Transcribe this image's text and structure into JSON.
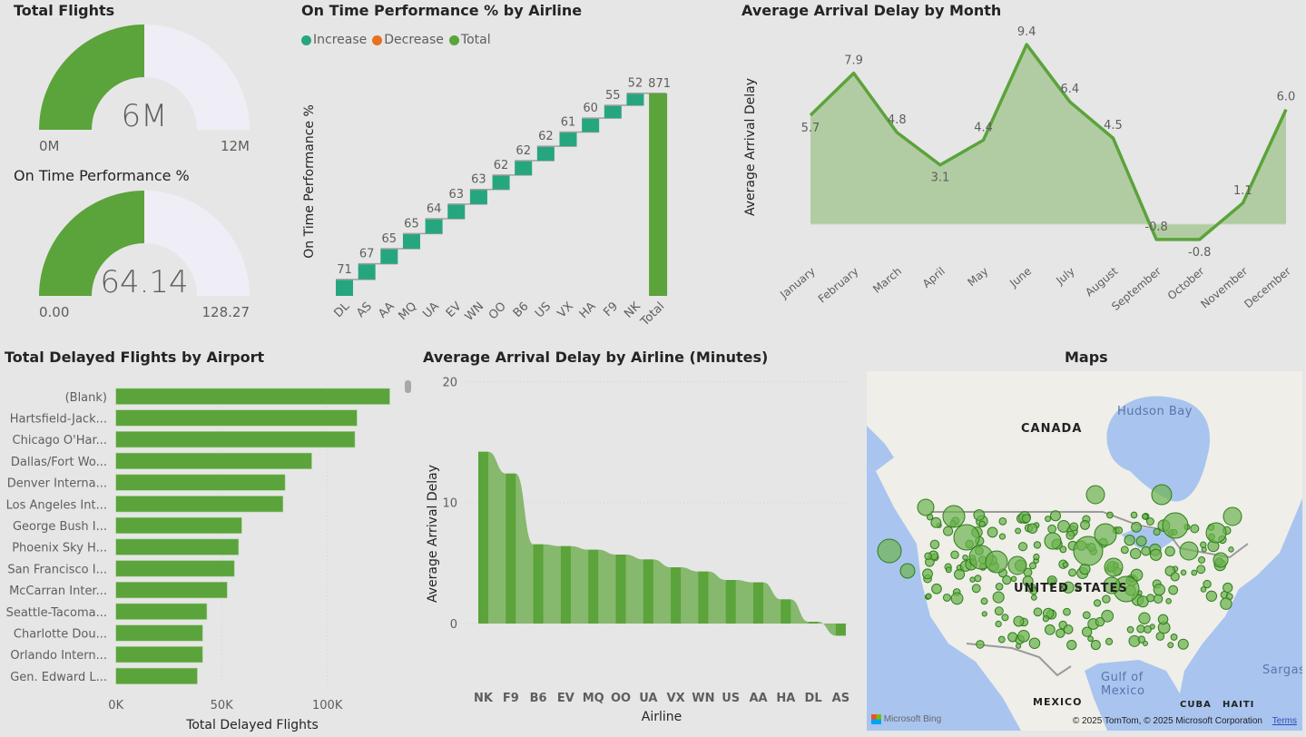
{
  "colors": {
    "green": "#5ba33b",
    "teal": "#26a67f",
    "orange": "#e8711f",
    "ribbon_light": "#86b86d",
    "area_fill": "#b1cca2",
    "gauge_empty": "#efeef6",
    "background": "#e6e6e6"
  },
  "total_flights": {
    "title": "Total Flights",
    "value": "6M",
    "min": "0M",
    "max": "12M",
    "fill_fraction": 0.5
  },
  "otp_gauge": {
    "title": "On Time Performance %",
    "value": "64.14",
    "min": "0.00",
    "max": "128.27",
    "fill_fraction": 0.5
  },
  "waterfall": {
    "title": "On Time Performance % by Airline",
    "legend": [
      {
        "label": "Increase",
        "color": "#26a67f"
      },
      {
        "label": "Decrease",
        "color": "#e8711f"
      },
      {
        "label": "Total",
        "color": "#5ba33b"
      }
    ]
  },
  "area": {
    "title": "Average Arrival Delay by Month"
  },
  "airports": {
    "title": "Total Delayed Flights by Airport"
  },
  "ribbon": {
    "title": "Average Arrival Delay by Airline (Minutes)"
  },
  "map": {
    "title": "Maps",
    "labels": {
      "canada": "CANADA",
      "us": "UNITED STATES",
      "mexico": "MEXICO",
      "cuba": "CUBA",
      "haiti": "HAITI",
      "hudson": "Hudson Bay",
      "gulf1": "Gulf of",
      "gulf2": "Mexico",
      "sargasso": "Sargasso"
    },
    "brand": "Microsoft Bing",
    "copyright": "© 2025 TomTom, © 2025 Microsoft Corporation",
    "terms": "Terms"
  },
  "chart_data": [
    {
      "type": "waterfall",
      "title": "On Time Performance % by Airline",
      "ylabel": "On Time Performance %",
      "categories": [
        "DL",
        "AS",
        "AA",
        "MQ",
        "UA",
        "EV",
        "WN",
        "OO",
        "B6",
        "US",
        "VX",
        "HA",
        "F9",
        "NK"
      ],
      "values": [
        71,
        67,
        65,
        65,
        64,
        63,
        63,
        62,
        62,
        62,
        61,
        60,
        55,
        52
      ],
      "total_label": "Total",
      "total": 871,
      "legend": [
        "Increase",
        "Decrease",
        "Total"
      ]
    },
    {
      "type": "area",
      "title": "Average Arrival Delay by Month",
      "ylabel": "Average Arrival Delay",
      "categories": [
        "January",
        "February",
        "March",
        "April",
        "May",
        "June",
        "July",
        "August",
        "September",
        "October",
        "November",
        "December"
      ],
      "values": [
        5.7,
        7.9,
        4.8,
        3.1,
        4.4,
        9.4,
        6.4,
        4.5,
        -0.8,
        -0.8,
        1.1,
        6.0
      ]
    },
    {
      "type": "bar",
      "orientation": "horizontal",
      "title": "Total Delayed Flights by Airport",
      "xlabel": "Total Delayed Flights",
      "categories": [
        "(Blank)",
        "Hartsfield-Jack...",
        "Chicago O'Har...",
        "Dallas/Fort Wo...",
        "Denver Interna...",
        "Los Angeles Int...",
        "George Bush I...",
        "Phoenix Sky H...",
        "San Francisco I...",
        "McCarran Inter...",
        "Seattle-Tacoma...",
        "Charlotte Dou...",
        "Orlando Intern...",
        "Gen. Edward L..."
      ],
      "values": [
        129500,
        114000,
        113000,
        92600,
        80000,
        79000,
        59500,
        58000,
        56000,
        52600,
        43000,
        41000,
        41000,
        38500
      ],
      "xticks": [
        "0K",
        "50K",
        "100K"
      ],
      "xtick_values": [
        0,
        50000,
        100000
      ]
    },
    {
      "type": "ribbon",
      "title": "Average Arrival Delay by Airline (Minutes)",
      "xlabel": "Airline",
      "ylabel": "Average Arrival Delay",
      "categories": [
        "NK",
        "F9",
        "B6",
        "EV",
        "MQ",
        "OO",
        "UA",
        "VX",
        "WN",
        "US",
        "AA",
        "HA",
        "DL",
        "AS"
      ],
      "values": [
        14.2,
        12.4,
        6.55,
        6.4,
        6.1,
        5.7,
        5.3,
        4.65,
        4.3,
        3.6,
        3.4,
        2.0,
        0.15,
        -1.0
      ],
      "yticks": [
        "0",
        "10",
        "20"
      ],
      "ytick_values": [
        0,
        10,
        20
      ],
      "grid": true
    }
  ]
}
